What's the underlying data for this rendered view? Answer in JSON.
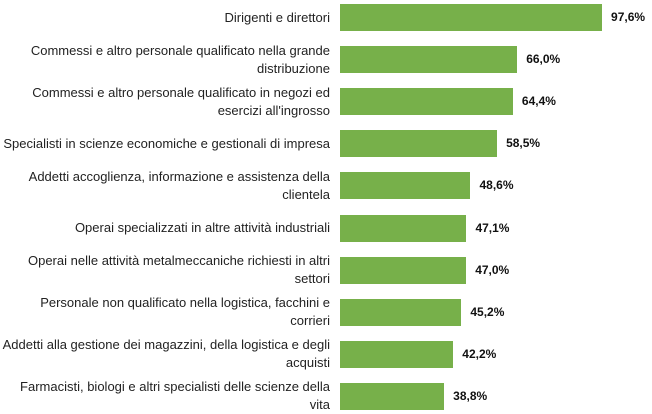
{
  "chart_data": {
    "type": "barh",
    "categories": [
      "Dirigenti e direttori",
      "Commessi e altro personale qualificato nella grande distribuzione",
      "Commessi e altro personale qualificato in negozi ed esercizi all'ingrosso",
      "Specialisti in scienze economiche e gestionali di impresa",
      "Addetti accoglienza, informazione e assistenza della clientela",
      "Operai specializzati in altre attività industriali",
      "Operai nelle attività metalmeccaniche richiesti in altri settori",
      "Personale non qualificato nella logistica, facchini e corrieri",
      "Addetti alla gestione dei magazzini, della logistica e degli acquisti",
      "Farmacisti, biologi e altri specialisti delle scienze della vita"
    ],
    "values": [
      97.6,
      66.0,
      64.4,
      58.5,
      48.6,
      47.1,
      47.0,
      45.2,
      42.2,
      38.8
    ],
    "value_labels": [
      "97,6%",
      "66,0%",
      "64,4%",
      "58,5%",
      "48,6%",
      "47,1%",
      "47,0%",
      "45,2%",
      "42,2%",
      "38,8%"
    ],
    "color": "#77b04a"
  }
}
